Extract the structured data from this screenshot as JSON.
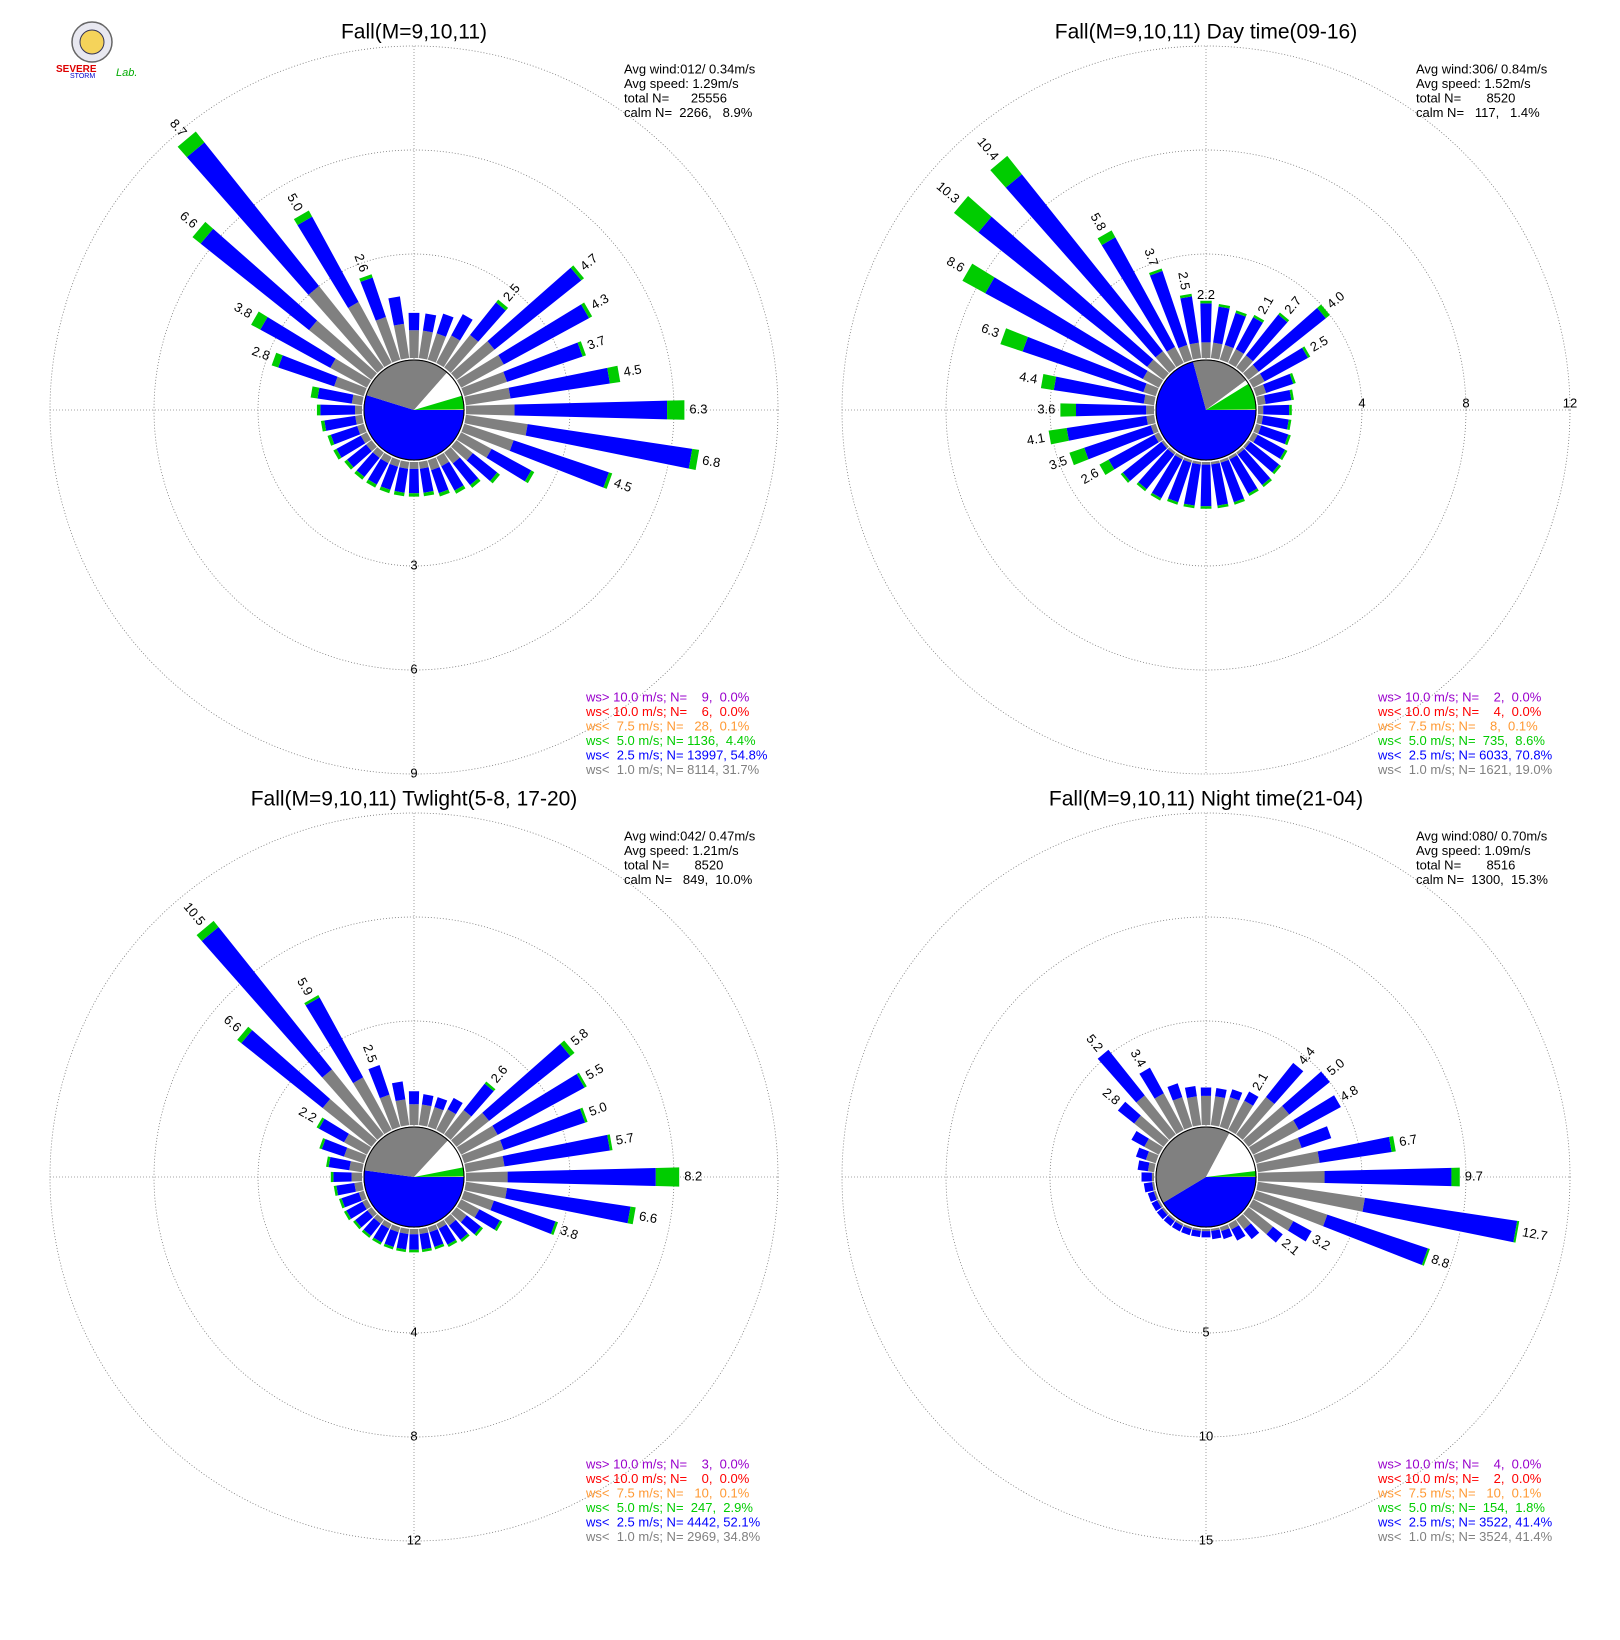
{
  "logo": [
    "SEVERE",
    "STORM",
    "Lab."
  ],
  "chart_data": [
    {
      "type": "wind_rose",
      "title": "Fall(M=9,10,11)",
      "stats": [
        "Avg wind:012/ 0.34m/s",
        "Avg speed: 1.29m/s",
        "total N=      25556",
        "calm N=  2266,   8.9%"
      ],
      "calm_percent": 8.9,
      "rlim": [
        0,
        9
      ],
      "rticks": [
        3,
        6,
        9
      ],
      "tick_axis": "south",
      "series": [
        {
          "color": "#808080",
          "values": [
            0.8,
            0.8,
            0.8,
            0.9,
            1.2,
            1.4,
            1.4,
            1.3,
            1.3,
            1.4,
            1.8,
            1.5,
            1.0,
            0.6,
            0.4,
            0.3,
            0.3,
            0.2,
            0.2,
            0.2,
            0.2,
            0.2,
            0.2,
            0.2,
            0.2,
            0.2,
            0.2,
            0.2,
            0.3,
            0.9,
            1.2,
            2.3,
            3.0,
            2.0,
            1.3,
            1.0
          ]
        },
        {
          "color": "#0000ff",
          "values": [
            0.5,
            0.5,
            0.6,
            0.7,
            1.2,
            3.2,
            2.8,
            2.3,
            2.9,
            4.4,
            4.8,
            2.9,
            1.3,
            0.9,
            0.8,
            0.8,
            0.7,
            0.7,
            0.7,
            0.7,
            0.7,
            0.7,
            0.7,
            0.7,
            0.8,
            0.8,
            0.9,
            1.0,
            1.0,
            1.7,
            2.3,
            4.0,
            5.3,
            2.8,
            1.2,
            0.8
          ]
        },
        {
          "color": "#00cc00",
          "values": [
            0,
            0,
            0,
            0,
            0.1,
            0.1,
            0.1,
            0.1,
            0.3,
            0.5,
            0.2,
            0.1,
            0.1,
            0.1,
            0.1,
            0.1,
            0.1,
            0.1,
            0.1,
            0.1,
            0.1,
            0.1,
            0.1,
            0.1,
            0.1,
            0.1,
            0.1,
            0.1,
            0.2,
            0.2,
            0.3,
            0.3,
            0.4,
            0.2,
            0.1,
            0
          ]
        }
      ],
      "value_labels": [
        null,
        null,
        null,
        null,
        "2.5",
        "4.7",
        "4.3",
        "3.7",
        "4.5",
        "6.3",
        "6.8",
        "4.5",
        null,
        null,
        null,
        null,
        null,
        null,
        null,
        null,
        null,
        null,
        null,
        null,
        null,
        null,
        null,
        null,
        null,
        "2.8",
        "3.8",
        "6.6",
        "8.7",
        "5.0",
        "2.6",
        null
      ],
      "legend": [
        {
          "label": "ws> 10.0 m/s; N=    9,  0.0%",
          "color": "#9900cc",
          "percent": 0.0
        },
        {
          "label": "ws< 10.0 m/s; N=    6,  0.0%",
          "color": "#ff0000",
          "percent": 0.0
        },
        {
          "label": "ws<  7.5 m/s; N=   28,  0.1%",
          "color": "#ff9933",
          "percent": 0.1
        },
        {
          "label": "ws<  5.0 m/s; N= 1136,  4.4%",
          "color": "#00cc00",
          "percent": 4.4
        },
        {
          "label": "ws<  2.5 m/s; N= 13997, 54.8%",
          "color": "#0000ff",
          "percent": 54.8
        },
        {
          "label": "ws<  1.0 m/s; N= 8114, 31.7%",
          "color": "#808080",
          "percent": 31.7
        }
      ]
    },
    {
      "type": "wind_rose",
      "title": "Fall(M=9,10,11) Day time(09-16)",
      "stats": [
        "Avg wind:306/ 0.84m/s",
        "Avg speed: 1.52m/s",
        "total N=       8520",
        "calm N=   117,   1.4%"
      ],
      "calm_percent": 1.4,
      "rlim": [
        0,
        12
      ],
      "rticks": [
        4,
        8,
        12
      ],
      "tick_axis": "east",
      "series": [
        {
          "color": "#808080",
          "values": [
            0.6,
            0.6,
            0.6,
            0.6,
            0.6,
            0.5,
            0.5,
            0.4,
            0.3,
            0.2,
            0.2,
            0.2,
            0.2,
            0.1,
            0.1,
            0.1,
            0.1,
            0.1,
            0.1,
            0.1,
            0.1,
            0.1,
            0.1,
            0.1,
            0.2,
            0.2,
            0.3,
            0.3,
            0.4,
            0.5,
            0.7,
            0.8,
            0.8,
            0.7,
            0.6,
            0.6
          ]
        },
        {
          "color": "#0000ff",
          "values": [
            1.5,
            1.4,
            1.3,
            1.4,
            2.0,
            3.3,
            1.9,
            1.1,
            1.0,
            1.0,
            1.0,
            1.1,
            1.2,
            1.4,
            1.5,
            1.5,
            1.6,
            1.6,
            1.6,
            1.6,
            1.6,
            1.7,
            1.7,
            1.9,
            2.0,
            2.7,
            3.1,
            2.7,
            3.5,
            4.9,
            6.9,
            8.3,
            8.7,
            4.8,
            3.0,
            1.8
          ]
        },
        {
          "color": "#00cc00",
          "values": [
            0.1,
            0.1,
            0.1,
            0.1,
            0.1,
            0.2,
            0.1,
            0.1,
            0.1,
            0.1,
            0.1,
            0.1,
            0.1,
            0.1,
            0.1,
            0.1,
            0.1,
            0.1,
            0.1,
            0.1,
            0.1,
            0.1,
            0.1,
            0.1,
            0.4,
            0.6,
            0.7,
            0.6,
            0.5,
            0.9,
            1.0,
            1.2,
            0.9,
            0.3,
            0.1,
            0.1
          ]
        }
      ],
      "value_labels": [
        "2.2",
        null,
        null,
        "2.1",
        "2.7",
        "4.0",
        "2.5",
        null,
        null,
        null,
        null,
        null,
        null,
        null,
        null,
        null,
        null,
        null,
        null,
        null,
        null,
        null,
        null,
        null,
        "2.6",
        "3.5",
        "4.1",
        "3.6",
        "4.4",
        "6.3",
        "8.6",
        "10.3",
        "10.4",
        "5.8",
        "3.7",
        "2.5"
      ],
      "legend": [
        {
          "label": "ws> 10.0 m/s; N=    2,  0.0%",
          "color": "#9900cc",
          "percent": 0.0
        },
        {
          "label": "ws< 10.0 m/s; N=    4,  0.0%",
          "color": "#ff0000",
          "percent": 0.0
        },
        {
          "label": "ws<  7.5 m/s; N=    8,  0.1%",
          "color": "#ff9933",
          "percent": 0.1
        },
        {
          "label": "ws<  5.0 m/s; N=  735,  8.6%",
          "color": "#00cc00",
          "percent": 8.6
        },
        {
          "label": "ws<  2.5 m/s; N= 6033, 70.8%",
          "color": "#0000ff",
          "percent": 70.8
        },
        {
          "label": "ws<  1.0 m/s; N= 1621, 19.0%",
          "color": "#808080",
          "percent": 19.0
        }
      ]
    },
    {
      "type": "wind_rose",
      "title": "Fall(M=9,10,11) Twlight(5-8, 17-20)",
      "stats": [
        "Avg wind:042/ 0.47m/s",
        "Avg speed: 1.21m/s",
        "total N=       8520",
        "calm N=   849,  10.0%"
      ],
      "calm_percent": 10.0,
      "rlim": [
        0,
        12
      ],
      "rticks": [
        4,
        8,
        12
      ],
      "tick_axis": "south",
      "series": [
        {
          "color": "#808080",
          "values": [
            0.8,
            0.8,
            0.8,
            0.9,
            1.2,
            1.6,
            1.6,
            1.6,
            1.5,
            1.6,
            1.6,
            1.2,
            0.8,
            0.5,
            0.3,
            0.2,
            0.2,
            0.2,
            0.2,
            0.2,
            0.2,
            0.2,
            0.2,
            0.2,
            0.2,
            0.2,
            0.3,
            0.4,
            0.5,
            0.8,
            1.0,
            2.4,
            3.2,
            2.3,
            1.3,
            1.0
          ]
        },
        {
          "color": "#0000ff",
          "values": [
            0.5,
            0.4,
            0.4,
            0.5,
            1.3,
            4.0,
            3.8,
            3.3,
            4.1,
            5.7,
            4.8,
            2.5,
            0.9,
            0.7,
            0.7,
            0.7,
            0.6,
            0.6,
            0.6,
            0.6,
            0.6,
            0.6,
            0.6,
            0.6,
            0.7,
            0.7,
            0.7,
            0.7,
            0.8,
            0.9,
            1.1,
            4.0,
            7.0,
            3.5,
            1.2,
            0.7
          ]
        },
        {
          "color": "#00cc00",
          "values": [
            0,
            0,
            0,
            0,
            0.1,
            0.2,
            0.1,
            0.1,
            0.1,
            0.9,
            0.2,
            0.1,
            0.1,
            0.1,
            0.1,
            0.1,
            0.1,
            0.1,
            0.1,
            0.1,
            0.1,
            0.1,
            0.1,
            0.1,
            0.1,
            0.1,
            0.1,
            0.1,
            0.1,
            0.1,
            0.1,
            0.2,
            0.3,
            0.1,
            0,
            0
          ]
        }
      ],
      "value_labels": [
        null,
        null,
        null,
        null,
        "2.6",
        "5.8",
        "5.5",
        "5.0",
        "5.7",
        "8.2",
        "6.6",
        "3.8",
        null,
        null,
        null,
        null,
        null,
        null,
        null,
        null,
        null,
        null,
        null,
        null,
        null,
        null,
        null,
        null,
        null,
        null,
        "2.2",
        "6.6",
        "10.5",
        "5.9",
        "2.5",
        null
      ],
      "legend": [
        {
          "label": "ws> 10.0 m/s; N=    3,  0.0%",
          "color": "#9900cc",
          "percent": 0.0
        },
        {
          "label": "ws< 10.0 m/s; N=    0,  0.0%",
          "color": "#ff0000",
          "percent": 0.0
        },
        {
          "label": "ws<  7.5 m/s; N=   10,  0.1%",
          "color": "#ff9933",
          "percent": 0.1
        },
        {
          "label": "ws<  5.0 m/s; N=  247,  2.9%",
          "color": "#00cc00",
          "percent": 2.9
        },
        {
          "label": "ws<  2.5 m/s; N= 4442, 52.1%",
          "color": "#0000ff",
          "percent": 52.1
        },
        {
          "label": "ws<  1.0 m/s; N= 2969, 34.8%",
          "color": "#808080",
          "percent": 34.8
        }
      ]
    },
    {
      "type": "wind_rose",
      "title": "Fall(M=9,10,11) Night time(21-04)",
      "stats": [
        "Avg wind:080/ 0.70m/s",
        "Avg speed: 1.09m/s",
        "total N=       8516",
        "calm N=  1300,  15.3%"
      ],
      "calm_percent": 15.3,
      "rlim": [
        0,
        15
      ],
      "rticks": [
        5,
        10,
        15
      ],
      "tick_axis": "south",
      "series": [
        {
          "color": "#808080",
          "values": [
            1.4,
            1.4,
            1.5,
            1.6,
            2.3,
            2.5,
            2.5,
            2.3,
            3.0,
            3.2,
            5.2,
            3.6,
            2.2,
            1.5,
            0.6,
            0.3,
            0.2,
            0.1,
            0.1,
            0.1,
            0.1,
            0.1,
            0.1,
            0.1,
            0.1,
            0.1,
            0.1,
            0.1,
            0.3,
            0.5,
            0.8,
            1.8,
            2.4,
            2.0,
            1.5,
            1.4
          ]
        },
        {
          "color": "#0000ff",
          "values": [
            0.4,
            0.4,
            0.4,
            0.5,
            2.1,
            2.5,
            2.3,
            1.5,
            3.5,
            6.1,
            7.4,
            5.1,
            1.0,
            0.6,
            0.6,
            0.6,
            0.4,
            0.4,
            0.3,
            0.3,
            0.3,
            0.3,
            0.3,
            0.3,
            0.3,
            0.3,
            0.4,
            0.5,
            0.5,
            0.5,
            0.7,
            1.0,
            2.8,
            1.4,
            0.7,
            0.5
          ]
        },
        {
          "color": "#00cc00",
          "values": [
            0,
            0,
            0,
            0,
            0,
            0,
            0,
            0,
            0.2,
            0.4,
            0.1,
            0.1,
            0,
            0,
            0,
            0,
            0,
            0,
            0,
            0,
            0,
            0,
            0,
            0,
            0,
            0,
            0,
            0,
            0,
            0,
            0,
            0,
            0,
            0,
            0,
            0
          ]
        }
      ],
      "value_labels": [
        null,
        null,
        null,
        "2.1",
        "4.4",
        "5.0",
        "4.8",
        null,
        "6.7",
        "9.7",
        "12.7",
        "8.8",
        "3.2",
        "2.1",
        null,
        null,
        null,
        null,
        null,
        null,
        null,
        null,
        null,
        null,
        null,
        null,
        null,
        null,
        null,
        null,
        null,
        "2.8",
        "5.2",
        "3.4",
        null,
        null
      ],
      "legend": [
        {
          "label": "ws> 10.0 m/s; N=    4,  0.0%",
          "color": "#9900cc",
          "percent": 0.0
        },
        {
          "label": "ws< 10.0 m/s; N=    2,  0.0%",
          "color": "#ff0000",
          "percent": 0.0
        },
        {
          "label": "ws<  7.5 m/s; N=   10,  0.1%",
          "color": "#ff9933",
          "percent": 0.1
        },
        {
          "label": "ws<  5.0 m/s; N=  154,  1.8%",
          "color": "#00cc00",
          "percent": 1.8
        },
        {
          "label": "ws<  2.5 m/s; N= 3522, 41.4%",
          "color": "#0000ff",
          "percent": 41.4
        },
        {
          "label": "ws<  1.0 m/s; N= 3524, 41.4%",
          "color": "#808080",
          "percent": 41.4
        }
      ]
    }
  ]
}
